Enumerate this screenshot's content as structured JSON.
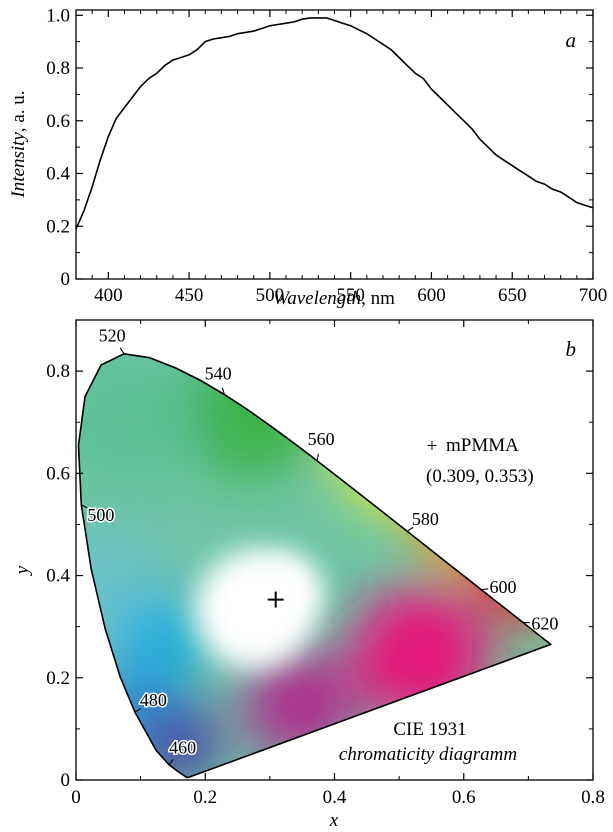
{
  "chart_data": [
    {
      "panel": "a",
      "type": "line",
      "xlabel_italic": "Wavelength",
      "xlabel_unit": ", nm",
      "ylabel_italic": "Intensity",
      "ylabel_unit": ", a. u.",
      "xlim": [
        380,
        700
      ],
      "ylim": [
        0,
        1.02
      ],
      "xticks": [
        400,
        450,
        500,
        550,
        600,
        650,
        700
      ],
      "yticks": [
        0,
        0.2,
        0.4,
        0.6,
        0.8,
        1.0
      ],
      "xtick_labels": [
        "400",
        "450",
        "500",
        "550",
        "600",
        "650",
        "700"
      ],
      "ytick_labels": [
        "0",
        "0.2",
        "0.4",
        "0.6",
        "0.8",
        "1.0"
      ],
      "x": [
        380,
        385,
        390,
        395,
        400,
        405,
        410,
        415,
        420,
        425,
        430,
        435,
        440,
        445,
        450,
        455,
        460,
        465,
        470,
        475,
        480,
        485,
        490,
        495,
        500,
        505,
        510,
        515,
        520,
        525,
        530,
        535,
        540,
        545,
        550,
        555,
        560,
        565,
        570,
        575,
        580,
        585,
        590,
        595,
        600,
        605,
        610,
        615,
        620,
        625,
        630,
        635,
        640,
        645,
        650,
        655,
        660,
        665,
        670,
        675,
        680,
        685,
        690,
        695,
        700
      ],
      "y": [
        0.19,
        0.26,
        0.35,
        0.45,
        0.54,
        0.61,
        0.65,
        0.69,
        0.73,
        0.76,
        0.78,
        0.81,
        0.83,
        0.84,
        0.85,
        0.87,
        0.9,
        0.91,
        0.915,
        0.92,
        0.93,
        0.935,
        0.94,
        0.95,
        0.96,
        0.965,
        0.97,
        0.975,
        0.985,
        0.99,
        0.99,
        0.99,
        0.98,
        0.97,
        0.96,
        0.945,
        0.93,
        0.91,
        0.89,
        0.87,
        0.84,
        0.81,
        0.78,
        0.76,
        0.72,
        0.69,
        0.66,
        0.63,
        0.6,
        0.57,
        0.53,
        0.5,
        0.47,
        0.45,
        0.43,
        0.41,
        0.39,
        0.37,
        0.36,
        0.34,
        0.33,
        0.31,
        0.29,
        0.28,
        0.27
      ]
    },
    {
      "panel": "b",
      "type": "scatter",
      "xlabel": "x",
      "ylabel": "y",
      "xlim": [
        0,
        0.8
      ],
      "ylim": [
        0,
        0.9
      ],
      "xticks": [
        0,
        0.2,
        0.4,
        0.6,
        0.8
      ],
      "yticks": [
        0,
        0.2,
        0.4,
        0.6,
        0.8
      ],
      "xtick_labels": [
        "0",
        "0.2",
        "0.4",
        "0.6",
        "0.8"
      ],
      "ytick_labels": [
        "0",
        "0.2",
        "0.4",
        "0.6",
        "0.8"
      ],
      "locus_x": [
        0.1741,
        0.1738,
        0.1733,
        0.1726,
        0.1714,
        0.1689,
        0.1644,
        0.1566,
        0.144,
        0.1241,
        0.0913,
        0.0687,
        0.0454,
        0.0235,
        0.0082,
        0.0039,
        0.0139,
        0.0389,
        0.0743,
        0.1142,
        0.1547,
        0.1929,
        0.2296,
        0.2658,
        0.3016,
        0.3373,
        0.3731,
        0.4087,
        0.4441,
        0.4788,
        0.5125,
        0.5448,
        0.5752,
        0.6029,
        0.627,
        0.6482,
        0.6658,
        0.6915,
        0.714,
        0.7347
      ],
      "locus_y": [
        0.005,
        0.0049,
        0.0048,
        0.0048,
        0.0051,
        0.0069,
        0.0109,
        0.0177,
        0.0297,
        0.0578,
        0.1327,
        0.2007,
        0.295,
        0.4127,
        0.5384,
        0.6548,
        0.7502,
        0.812,
        0.8338,
        0.8262,
        0.8059,
        0.7816,
        0.7543,
        0.7243,
        0.6923,
        0.6589,
        0.6245,
        0.5896,
        0.5547,
        0.5202,
        0.4866,
        0.4544,
        0.4242,
        0.3965,
        0.3725,
        0.3514,
        0.334,
        0.3083,
        0.2859,
        0.2653
      ],
      "wavelength_labels": [
        {
          "text": "520",
          "x": 0.0743,
          "y": 0.8338
        },
        {
          "text": "540",
          "x": 0.2296,
          "y": 0.7543
        },
        {
          "text": "560",
          "x": 0.3731,
          "y": 0.6245
        },
        {
          "text": "580",
          "x": 0.5125,
          "y": 0.4866
        },
        {
          "text": "600",
          "x": 0.627,
          "y": 0.3725
        },
        {
          "text": "620",
          "x": 0.6915,
          "y": 0.3083
        },
        {
          "text": "500",
          "x": 0.0082,
          "y": 0.5384
        },
        {
          "text": "480",
          "x": 0.0913,
          "y": 0.1327
        },
        {
          "text": "460",
          "x": 0.144,
          "y": 0.0297
        }
      ],
      "points": [
        {
          "name": "mPMMA",
          "x": 0.309,
          "y": 0.353,
          "coord_label": "(0.309, 0.353)"
        }
      ],
      "annotation_line1": "CIE 1931",
      "annotation_line2": "chromaticity diagramm",
      "colors": {
        "curve": "#000000",
        "marker": "#000000"
      }
    }
  ],
  "labels": {
    "panel_a": "a",
    "panel_b": "b",
    "marker_symbol": "+"
  }
}
